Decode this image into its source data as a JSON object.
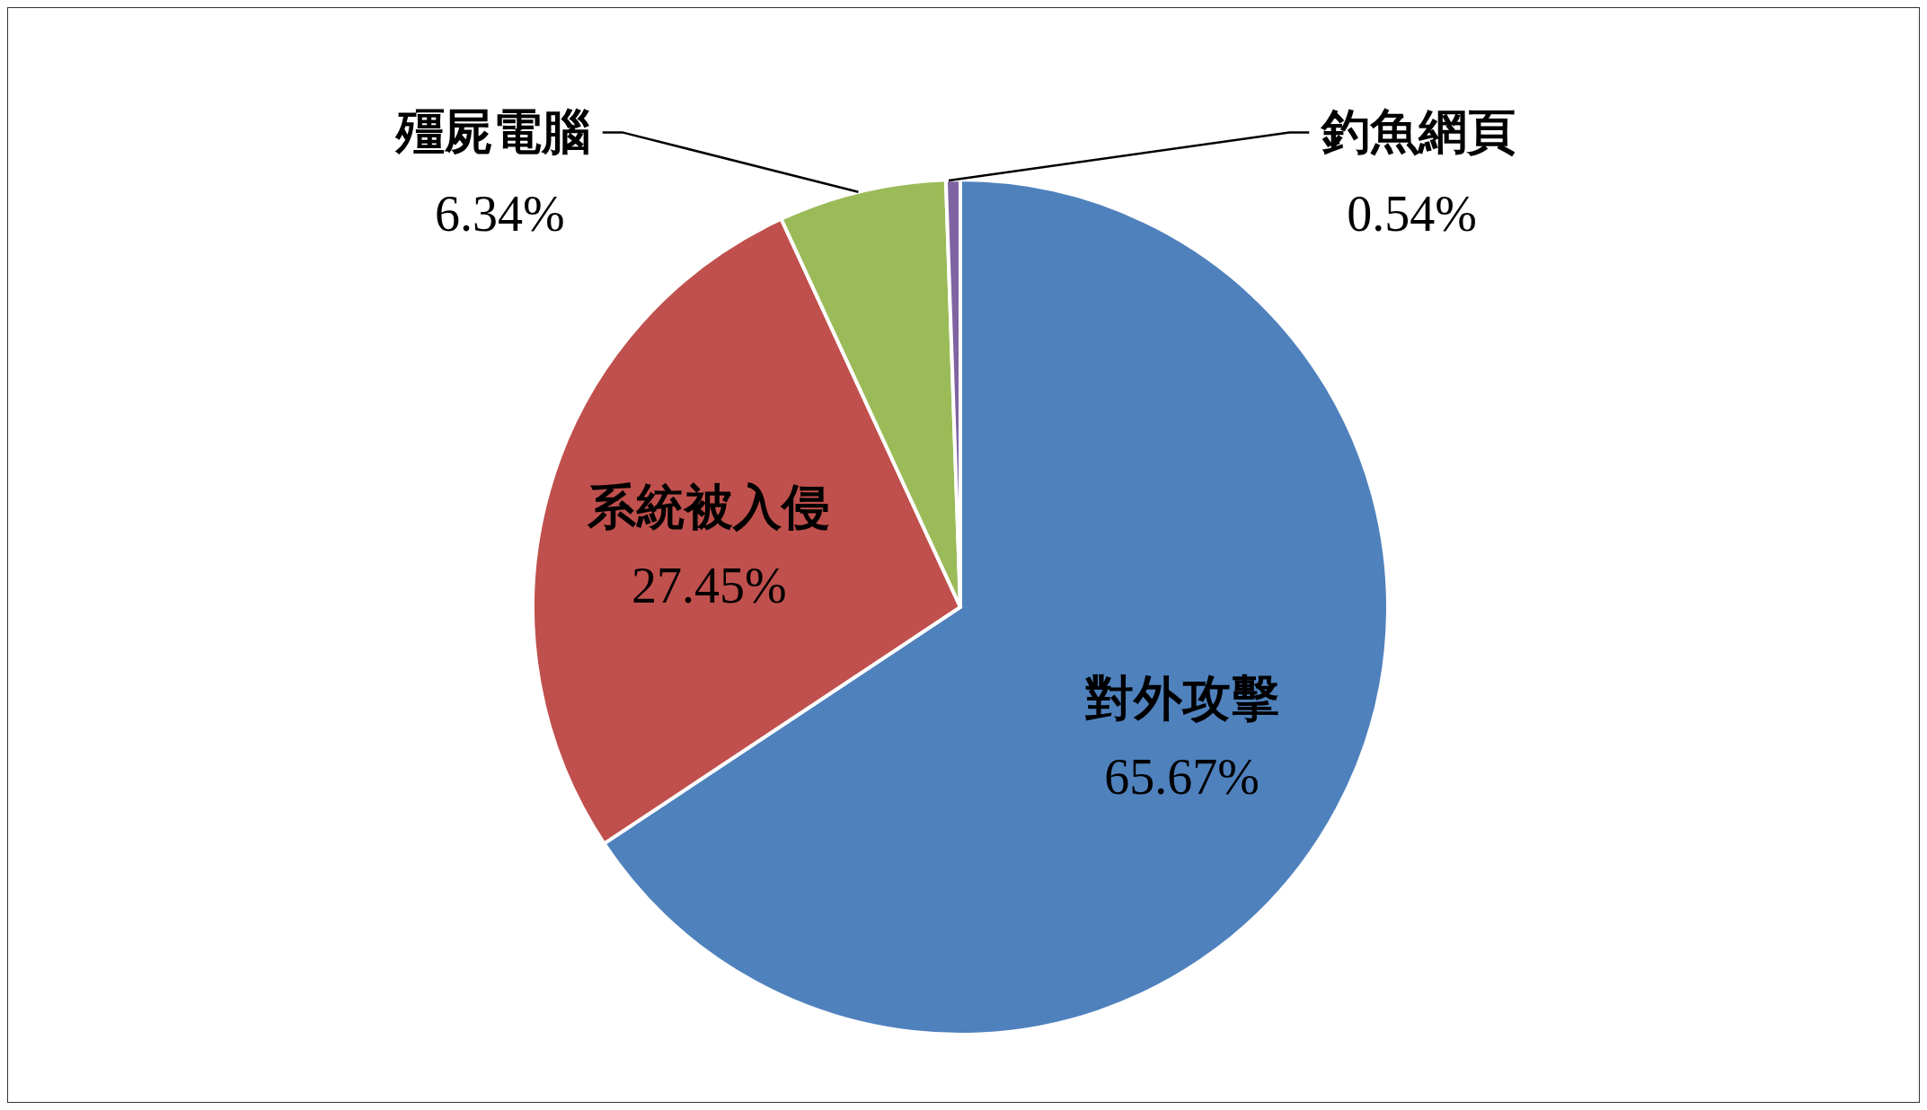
{
  "chart_data": {
    "type": "pie",
    "categories": [
      "對外攻擊",
      "系統被入侵",
      "殭屍電腦",
      "釣魚網頁"
    ],
    "values": [
      65.67,
      27.45,
      6.34,
      0.54
    ],
    "value_labels": [
      "65.67%",
      "27.45%",
      "6.34%",
      "0.54%"
    ],
    "colors": [
      "#4f81bd",
      "#c0504d",
      "#9bbb59",
      "#8064a2"
    ],
    "legend": false
  }
}
